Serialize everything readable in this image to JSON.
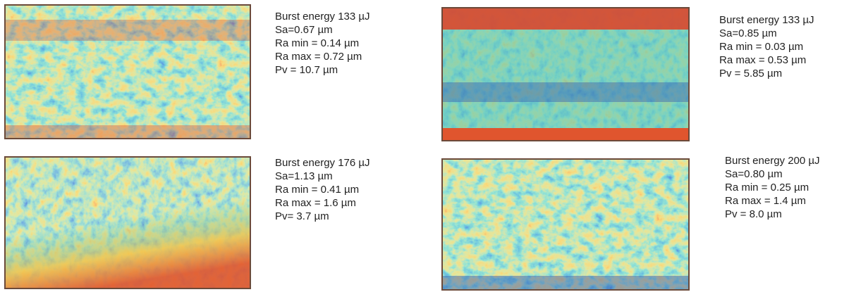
{
  "panels": [
    {
      "lines": [
        "Burst energy 133 µJ",
        "Sa=0.67 µm",
        "Ra min = 0.14 µm",
        "Ra max = 0.72 µm",
        "Pv = 10.7 µm"
      ]
    },
    {
      "lines": [
        "Burst energy 133 µJ",
        "Sa=0.85 µm",
        "Ra min = 0.03 µm",
        "Ra max = 0.53 µm",
        "Pv = 5.85 µm"
      ]
    },
    {
      "lines": [
        "Burst energy 176 µJ",
        "Sa=1.13 µm",
        "Ra min = 0.41 µm",
        "Ra max = 1.6 µm",
        "Pv= 3.7 µm"
      ]
    },
    {
      "lines": [
        "Burst energy 200 µJ",
        "Sa=0.80 µm",
        "Ra min = 0.25 µm",
        "Ra max = 1.4 µm",
        "Pv = 8.0 µm"
      ]
    }
  ]
}
